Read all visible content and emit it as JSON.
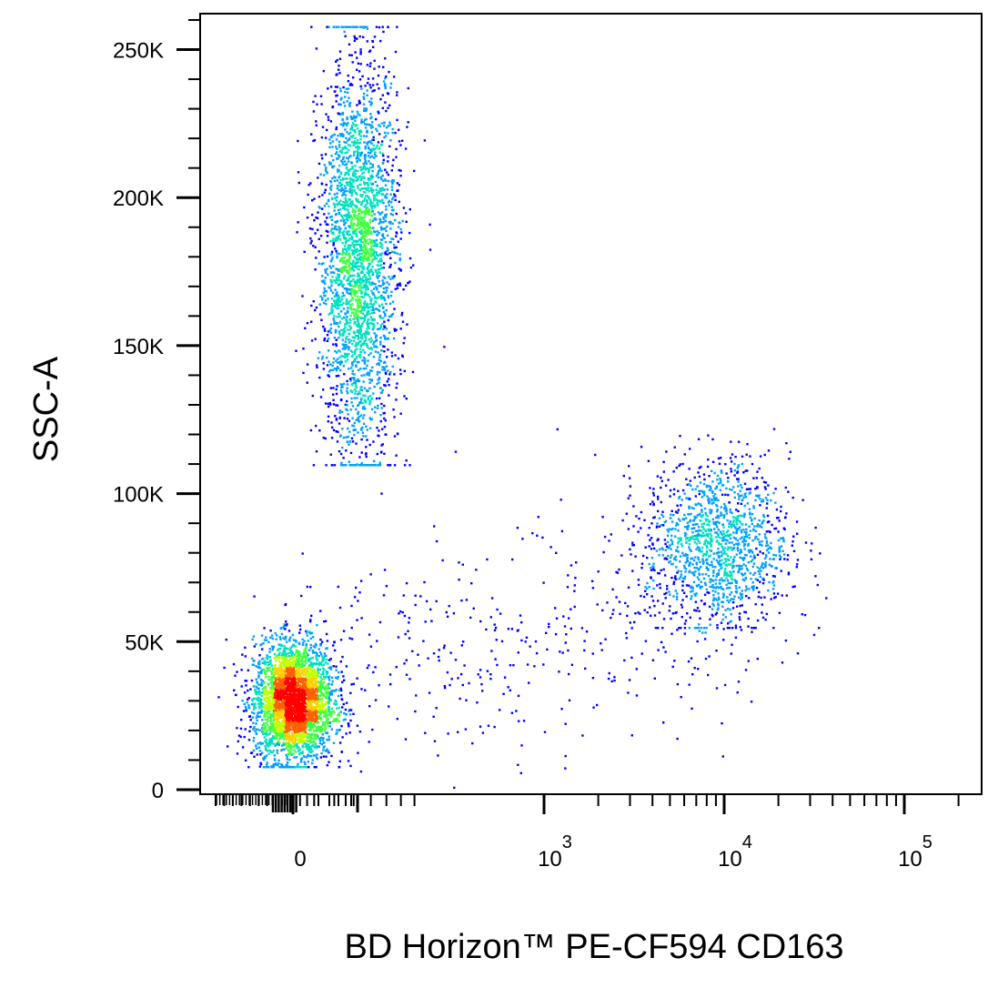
{
  "chart_data": {
    "type": "scatter",
    "subtype": "flow-cytometry density dot plot",
    "xlabel": "BD Horizon™ PE-CF594 CD163",
    "ylabel": "SSC-A",
    "x_scale": "biexponential",
    "x_ticks": [
      {
        "value": 0,
        "base": "0",
        "exp": ""
      },
      {
        "value": 1000,
        "base": "10",
        "exp": "3"
      },
      {
        "value": 10000,
        "base": "10",
        "exp": "4"
      },
      {
        "value": 100000,
        "base": "10",
        "exp": "5"
      }
    ],
    "y_scale": "linear",
    "ylim": [
      0,
      262144
    ],
    "y_ticks": [
      {
        "value": 0,
        "label": "0"
      },
      {
        "value": 50000,
        "label": "50K"
      },
      {
        "value": 100000,
        "label": "100K"
      },
      {
        "value": 150000,
        "label": "150K"
      },
      {
        "value": 200000,
        "label": "200K"
      },
      {
        "value": 250000,
        "label": "250K"
      }
    ],
    "colormap": [
      "#0000ff",
      "#00a0ff",
      "#00e0c0",
      "#40ff40",
      "#c0ff00",
      "#ffd000",
      "#ff6000",
      "#ff0000"
    ],
    "populations": [
      {
        "x_center": 10,
        "x_spread": 60,
        "y_center": 30000,
        "y_spread": 10000,
        "events": 3200
      },
      {
        "x_center": 200,
        "x_spread": 80,
        "y_center": 180000,
        "y_spread": 33000,
        "events": 2800
      },
      {
        "x_center": 9000,
        "x_spread_log10": 0.2,
        "y_center": 84000,
        "y_spread": 14000,
        "events": 1300
      },
      {
        "x_center": 1200,
        "x_spread_log10": 0.55,
        "y_center": 62000,
        "y_spread": 18000,
        "events": 450
      }
    ],
    "grid": false,
    "legend": "none"
  }
}
